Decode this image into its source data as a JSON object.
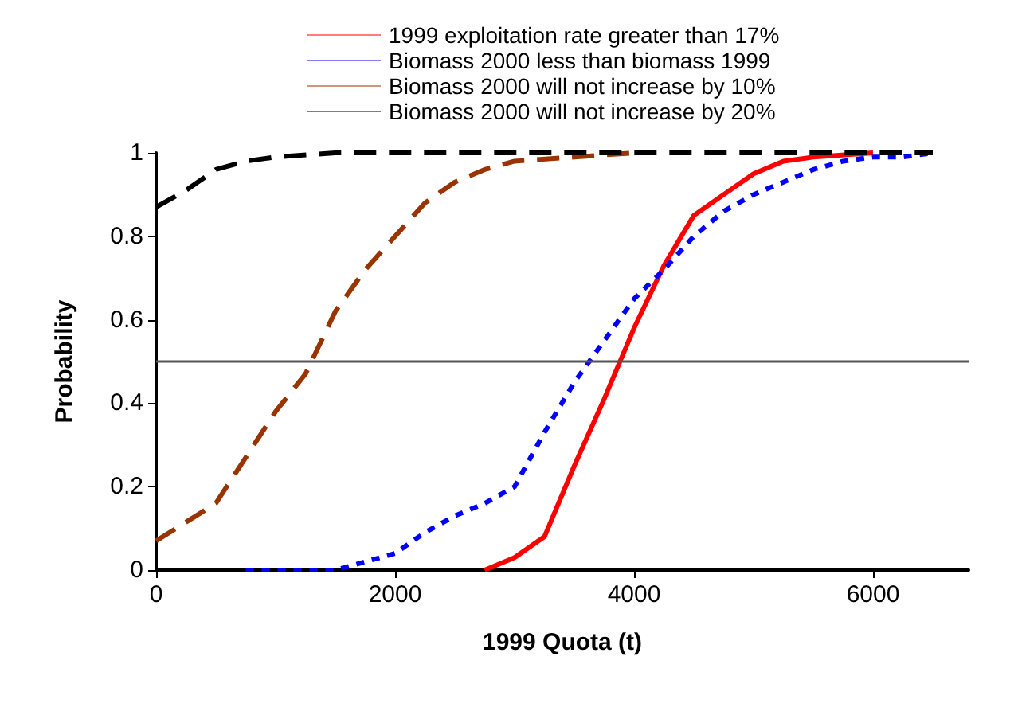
{
  "chart_data": {
    "type": "line",
    "xlabel": "1999 Quota (t)",
    "ylabel": "Probability",
    "xlim": [
      0,
      6800
    ],
    "xticks": [
      0,
      2000,
      4000,
      6000
    ],
    "ylim": [
      0,
      1
    ],
    "yticks": [
      0,
      0.2,
      0.4,
      0.6,
      0.8,
      1
    ],
    "grid": false,
    "legend": "top",
    "marker": "none",
    "ref_lines": [
      {
        "axis": "y",
        "value": 0.5,
        "color": "#555555"
      }
    ],
    "series": [
      {
        "name": "1999 exploitation rate greater than 17%",
        "color": "#ff0000",
        "line_style": "solid",
        "x": [
          2750,
          3000,
          3250,
          3500,
          3750,
          4000,
          4250,
          4500,
          4750,
          5000,
          5250,
          5500,
          6000
        ],
        "values": [
          0,
          0.03,
          0.08,
          0.25,
          0.41,
          0.58,
          0.73,
          0.85,
          0.9,
          0.95,
          0.98,
          0.99,
          1
        ]
      },
      {
        "name": "Biomass 2000 less than biomass 1999",
        "color": "#0000ff",
        "line_style": "dotted",
        "x": [
          750,
          1000,
          1250,
          1500,
          1750,
          2000,
          2250,
          2500,
          2750,
          3000,
          3250,
          3500,
          3750,
          4000,
          4250,
          4500,
          4750,
          5000,
          5250,
          5500,
          5750,
          6000,
          6250,
          6500
        ],
        "values": [
          0,
          0,
          0,
          0,
          0.02,
          0.04,
          0.09,
          0.13,
          0.16,
          0.2,
          0.33,
          0.45,
          0.55,
          0.65,
          0.72,
          0.8,
          0.86,
          0.9,
          0.93,
          0.96,
          0.98,
          0.99,
          0.99,
          1
        ]
      },
      {
        "name": "Biomass 2000 will not increase by 10%",
        "color": "#993300",
        "line_style": "dashed",
        "x": [
          0,
          500,
          750,
          1000,
          1250,
          1500,
          1750,
          2000,
          2250,
          2500,
          2750,
          3000,
          3500,
          4000
        ],
        "values": [
          0.07,
          0.16,
          0.27,
          0.38,
          0.47,
          0.62,
          0.72,
          0.8,
          0.88,
          0.93,
          0.96,
          0.98,
          0.99,
          1
        ]
      },
      {
        "name": "Biomass 2000 will not increase by 20%",
        "color": "#000000",
        "line_style": "dashed",
        "x": [
          0,
          250,
          500,
          750,
          1000,
          1500,
          6500
        ],
        "values": [
          0.87,
          0.91,
          0.96,
          0.98,
          0.99,
          1,
          1
        ]
      }
    ]
  }
}
